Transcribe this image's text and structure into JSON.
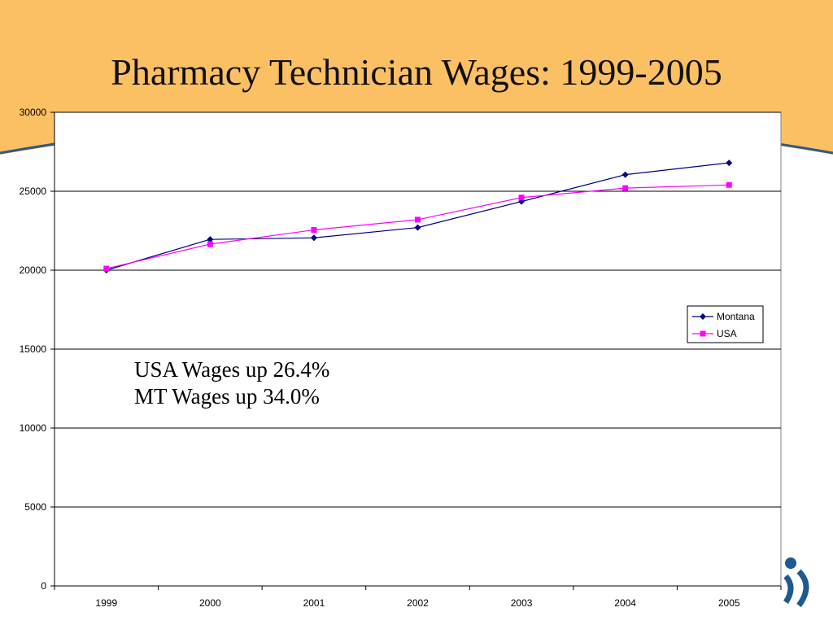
{
  "slide": {
    "title": "Pharmacy Technician Wages: 1999-2005",
    "colors": {
      "header_band": "#FCC064",
      "header_curve": "#2E5A86",
      "logo": "#1E5A8F"
    },
    "logo_icon": "person-arc-logo-icon"
  },
  "annotations": [
    "USA Wages up 26.4%",
    "MT Wages up 34.0%"
  ],
  "chart_data": {
    "type": "line",
    "categories": [
      "1999",
      "2000",
      "2001",
      "2002",
      "2003",
      "2004",
      "2005"
    ],
    "series": [
      {
        "name": "Montana",
        "color": "#000080",
        "marker": "diamond",
        "values": [
          20000,
          21950,
          22050,
          22700,
          24350,
          26050,
          26800
        ]
      },
      {
        "name": "USA",
        "color": "#FF00FF",
        "marker": "square",
        "values": [
          20100,
          21650,
          22550,
          23200,
          24600,
          25200,
          25400
        ]
      }
    ],
    "ylim": [
      0,
      30000
    ],
    "yticks": [
      0,
      5000,
      10000,
      15000,
      20000,
      25000,
      30000
    ],
    "grid": true,
    "legend": "right"
  }
}
